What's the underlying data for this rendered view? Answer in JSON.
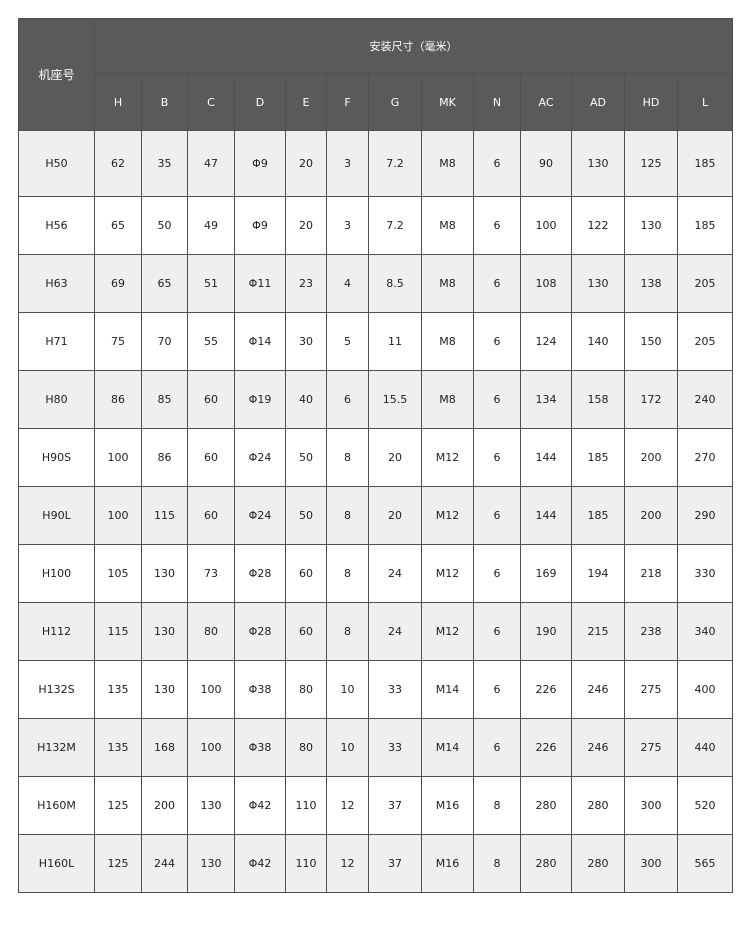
{
  "header": {
    "model_label": "机座号",
    "group_label": "安装尺寸（毫米）",
    "columns": [
      "H",
      "B",
      "C",
      "D",
      "E",
      "F",
      "G",
      "MK",
      "N",
      "AC",
      "AD",
      "HD",
      "L"
    ]
  },
  "rows": [
    [
      "H50",
      "62",
      "35",
      "47",
      "Φ9",
      "20",
      "3",
      "7.2",
      "M8",
      "6",
      "90",
      "130",
      "125",
      "185"
    ],
    [
      "H56",
      "65",
      "50",
      "49",
      "Φ9",
      "20",
      "3",
      "7.2",
      "M8",
      "6",
      "100",
      "122",
      "130",
      "185"
    ],
    [
      "H63",
      "69",
      "65",
      "51",
      "Φ11",
      "23",
      "4",
      "8.5",
      "M8",
      "6",
      "108",
      "130",
      "138",
      "205"
    ],
    [
      "H71",
      "75",
      "70",
      "55",
      "Φ14",
      "30",
      "5",
      "11",
      "M8",
      "6",
      "124",
      "140",
      "150",
      "205"
    ],
    [
      "H80",
      "86",
      "85",
      "60",
      "Φ19",
      "40",
      "6",
      "15.5",
      "M8",
      "6",
      "134",
      "158",
      "172",
      "240"
    ],
    [
      "H90S",
      "100",
      "86",
      "60",
      "Φ24",
      "50",
      "8",
      "20",
      "M12",
      "6",
      "144",
      "185",
      "200",
      "270"
    ],
    [
      "H90L",
      "100",
      "115",
      "60",
      "Φ24",
      "50",
      "8",
      "20",
      "M12",
      "6",
      "144",
      "185",
      "200",
      "290"
    ],
    [
      "H100",
      "105",
      "130",
      "73",
      "Φ28",
      "60",
      "8",
      "24",
      "M12",
      "6",
      "169",
      "194",
      "218",
      "330"
    ],
    [
      "H112",
      "115",
      "130",
      "80",
      "Φ28",
      "60",
      "8",
      "24",
      "M12",
      "6",
      "190",
      "215",
      "238",
      "340"
    ],
    [
      "H132S",
      "135",
      "130",
      "100",
      "Φ38",
      "80",
      "10",
      "33",
      "M14",
      "6",
      "226",
      "246",
      "275",
      "400"
    ],
    [
      "H132M",
      "135",
      "168",
      "100",
      "Φ38",
      "80",
      "10",
      "33",
      "M14",
      "6",
      "226",
      "246",
      "275",
      "440"
    ],
    [
      "H160M",
      "125",
      "200",
      "130",
      "Φ42",
      "110",
      "12",
      "37",
      "M16",
      "8",
      "280",
      "280",
      "300",
      "520"
    ],
    [
      "H160L",
      "125",
      "244",
      "130",
      "Φ42",
      "110",
      "12",
      "37",
      "M16",
      "8",
      "280",
      "280",
      "300",
      "565"
    ]
  ],
  "colors": {
    "header_bg": "#5a5a5a",
    "alt_row_bg": "#efefef",
    "border": "#505050"
  }
}
